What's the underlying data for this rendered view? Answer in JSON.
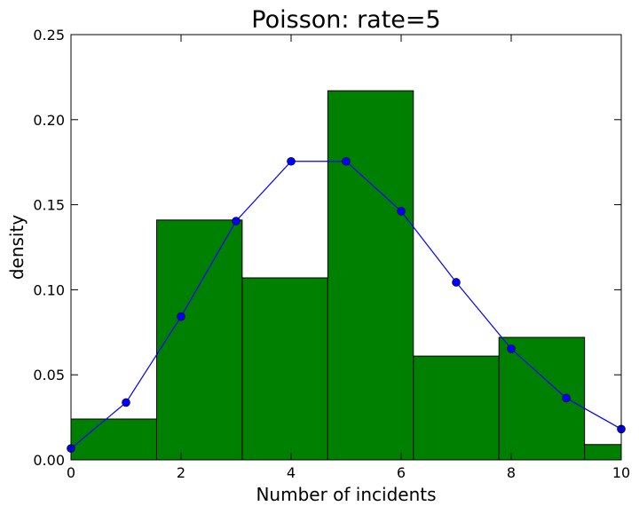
{
  "chart_data": {
    "type": "bar",
    "title": "Poisson: rate=5",
    "xlabel": "Number of incidents",
    "ylabel": "density",
    "xlim": [
      0,
      10
    ],
    "ylim": [
      0,
      0.25
    ],
    "xticks": [
      "0",
      "2",
      "4",
      "6",
      "8",
      "10"
    ],
    "yticks": [
      "0.00",
      "0.05",
      "0.10",
      "0.15",
      "0.20",
      "0.25"
    ],
    "grid": false,
    "histogram": {
      "bin_edges": [
        0,
        1.556,
        3.111,
        4.667,
        6.222,
        7.778,
        9.333,
        10.889
      ],
      "values": [
        0.024,
        0.141,
        0.107,
        0.217,
        0.061,
        0.072,
        0.009
      ],
      "color": "#008000"
    },
    "pmf_line": {
      "x": [
        0,
        1,
        2,
        3,
        4,
        5,
        6,
        7,
        8,
        9,
        10
      ],
      "y": [
        0.0067,
        0.0337,
        0.0842,
        0.1404,
        0.1755,
        0.1755,
        0.1462,
        0.1044,
        0.0653,
        0.0363,
        0.0181
      ],
      "color": "#0000ff"
    }
  }
}
